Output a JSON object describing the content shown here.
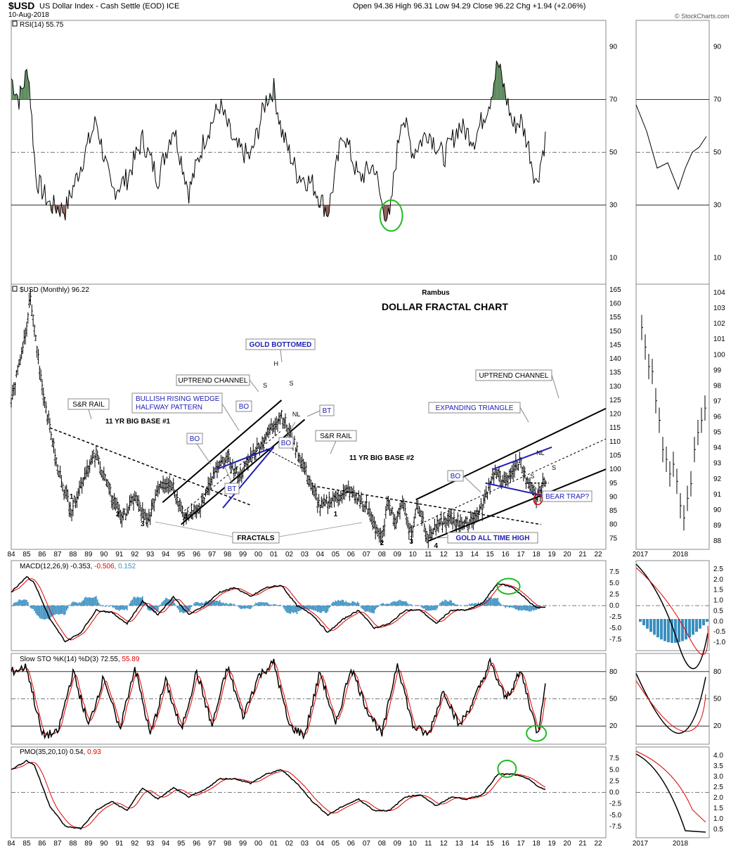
{
  "header": {
    "symbol": "$USD",
    "description": "US Dollar Index - Cash Settle (EOD) ICE",
    "date": "10-Aug-2018",
    "ohlc": "Open 94.36  High 96.31  Low 94.29  Close 96.22  Chg +1.94 (+2.06%)",
    "watermark": "© StockCharts.com"
  },
  "colors": {
    "price_bar": "#000000",
    "signal_line": "#e00000",
    "histogram": "#3a8fc0",
    "overbought_fill": "#5d8a5d",
    "oversold_fill": "#8c5a54",
    "annotation_box_text": "#1e1eb4",
    "highlight_circle": "#22bb22"
  },
  "x_axis": {
    "main_labels": [
      "84",
      "85",
      "86",
      "87",
      "88",
      "89",
      "90",
      "91",
      "92",
      "93",
      "94",
      "95",
      "96",
      "97",
      "98",
      "99",
      "00",
      "01",
      "02",
      "03",
      "04",
      "05",
      "06",
      "07",
      "08",
      "09",
      "10",
      "11",
      "12",
      "13",
      "14",
      "15",
      "16",
      "17",
      "18",
      "19",
      "20",
      "21",
      "22"
    ],
    "side_labels": [
      "2017",
      "2018"
    ]
  },
  "panels": {
    "rsi": {
      "title": "RSI(14) 55.75",
      "ticks": [
        "90",
        "70",
        "50",
        "30",
        "10"
      ],
      "side_ticks": [
        "90",
        "70",
        "50",
        "30",
        "10"
      ]
    },
    "price": {
      "title": "$USD (Monthly) 96.22",
      "ticks": [
        "165",
        "160",
        "155",
        "150",
        "145",
        "140",
        "135",
        "130",
        "125",
        "120",
        "115",
        "110",
        "105",
        "100",
        "95",
        "90",
        "85",
        "80",
        "75"
      ],
      "side_ticks": [
        "104",
        "103",
        "102",
        "101",
        "100",
        "99",
        "98",
        "97",
        "96",
        "95",
        "94",
        "93",
        "92",
        "91",
        "90",
        "89",
        "88"
      ],
      "author": "Rambus",
      "heading": "DOLLAR FRACTAL CHART"
    },
    "macd": {
      "title_main": "MACD(12,26,9) -0.353,",
      "title_signal": "-0.506,",
      "title_hist": "0.152",
      "ticks": [
        "7.5",
        "5.0",
        "2.5",
        "0.0",
        "-2.5",
        "-5.0",
        "-7.5"
      ],
      "side_ticks": [
        "2.5",
        "2.0",
        "1.5",
        "1.0",
        "0.5",
        "0.0",
        "-0.5",
        "-1.0"
      ]
    },
    "sto": {
      "title_main": "Slow STO %K(14) %D(3) 72.55,",
      "title_signal": "55.89",
      "ticks": [
        "80",
        "50",
        "20"
      ],
      "side_ticks": [
        "80",
        "50",
        "20"
      ]
    },
    "pmo": {
      "title_main": "PMO(35,20,10) 0.54,",
      "title_signal": "0.93",
      "ticks": [
        "7.5",
        "5.0",
        "2.5",
        "0.0",
        "-2.5",
        "-5.0",
        "-7.5"
      ],
      "side_ticks": [
        "4.0",
        "3.5",
        "3.0",
        "2.5",
        "2.0",
        "1.5",
        "1.0",
        "0.5"
      ]
    }
  },
  "annotations": {
    "sr_rail_1": "S&R RAIL",
    "base_1": "11 YR BIG BASE #1",
    "wedge_line1": "BULLISH RISING WEDGE",
    "wedge_line2": "HALFWAY PATTERN",
    "uptrend_channel_1": "UPTREND CHANNEL",
    "gold_bottomed": "GOLD BOTTOMED",
    "bo_a": "BO",
    "bo_b": "BO",
    "bo_c": "BO",
    "bo_d": "BO",
    "bt_a": "BT",
    "bt_b": "BT",
    "sr_rail_2": "S&R RAIL",
    "base_2": "11 YR BIG BASE #2",
    "uptrend_channel_2": "UPTREND CHANNEL",
    "expanding_triangle": "EXPANDING TRIANGLE",
    "bear_trap": "BEAR TRAP?",
    "gold_ath": "GOLD ALL TIME HIGH",
    "fractals": "FRACTALS",
    "hs_s1": "S",
    "hs_h1": "H",
    "hs_s2": "S",
    "hs_nl1": "NL",
    "hs_s3": "S",
    "hs_h2": "H",
    "hs_s4": "S",
    "hs_nl2": "NL",
    "n1a": "1",
    "n2a": "2",
    "n3a": "3",
    "n4a": "4",
    "n1b": "1",
    "n2b": "2",
    "n3b": "3",
    "n4b": "4"
  },
  "chart_data": {
    "type": "line",
    "title": "DOLLAR FRACTAL CHART",
    "x_range": [
      1984,
      2022.5
    ],
    "series": [
      {
        "name": "$USD (Monthly)",
        "x": [
          1984.0,
          1985.0,
          1985.2,
          1986.0,
          1987.0,
          1987.9,
          1988.9,
          1989.5,
          1990.5,
          1991.2,
          1992.0,
          1992.8,
          1993.6,
          1994.4,
          1995.3,
          1996.3,
          1997.3,
          1998.0,
          1998.7,
          1999.5,
          2000.5,
          2001.5,
          2002.0,
          2003.0,
          2004.0,
          2005.0,
          2005.9,
          2007.0,
          2008.0,
          2008.4,
          2008.9,
          2009.3,
          2009.9,
          2010.3,
          2011.0,
          2011.5,
          2012.5,
          2013.5,
          2014.5,
          2015.2,
          2016.0,
          2016.5,
          2017.0,
          2017.3,
          2018.0,
          2018.3,
          2018.6
        ],
        "y": [
          125,
          150,
          163,
          130,
          100,
          85,
          100,
          105,
          90,
          82,
          90,
          80,
          95,
          95,
          82,
          87,
          100,
          104,
          97,
          104,
          112,
          120,
          113,
          100,
          86,
          90,
          92,
          86,
          74,
          89,
          80,
          89,
          76,
          88,
          75,
          79,
          82,
          80,
          86,
          99,
          95,
          100,
          103,
          96,
          89,
          93,
          96.22
        ]
      },
      {
        "name": "RSI(14)",
        "x": [
          1984.0,
          1984.5,
          1985.1,
          1985.6,
          1986.5,
          1987.5,
          1988.5,
          1989.5,
          1990.5,
          1991.5,
          1992.5,
          1993.5,
          1994.5,
          1995.5,
          1996.5,
          1997.5,
          1998.5,
          1999.5,
          2000.5,
          2001.0,
          2001.5,
          2002.5,
          2003.5,
          2004.5,
          2005.5,
          2006.5,
          2007.5,
          2008.0,
          2008.5,
          2008.8,
          2009.3,
          2010.0,
          2011.0,
          2012.0,
          2013.0,
          2014.0,
          2015.0,
          2015.5,
          2016.5,
          2017.0,
          2017.5,
          2018.0,
          2018.6
        ],
        "y": [
          78,
          70,
          82,
          40,
          30,
          28,
          45,
          62,
          35,
          40,
          55,
          40,
          60,
          35,
          55,
          68,
          52,
          48,
          70,
          74,
          58,
          42,
          38,
          27,
          58,
          40,
          45,
          30,
          24,
          42,
          65,
          50,
          58,
          48,
          60,
          55,
          70,
          84,
          60,
          62,
          52,
          38,
          55.75
        ]
      },
      {
        "name": "MACD(12,26,9)",
        "x": [
          1984,
          1985,
          1985.5,
          1986.5,
          1987.5,
          1988.5,
          1989.5,
          1990.5,
          1991.5,
          1992.5,
          1993.5,
          1994.5,
          1995.5,
          1996.5,
          1997.5,
          1998.5,
          1999.5,
          2000.5,
          2001.5,
          2002.5,
          2003.5,
          2004.5,
          2005.5,
          2006.5,
          2007.5,
          2008.5,
          2009.5,
          2010.5,
          2011.5,
          2012.5,
          2013.5,
          2014.5,
          2015.5,
          2016.5,
          2017.5,
          2018.0,
          2018.6
        ],
        "y": [
          3,
          6.5,
          5,
          -3,
          -8,
          -6,
          -1,
          -1.5,
          -4,
          1,
          -2,
          2,
          -2,
          0,
          3,
          4,
          2,
          4,
          4.5,
          0,
          -2,
          -6,
          -3,
          -1,
          -5,
          -4,
          -1,
          -1,
          -4,
          -1,
          -1,
          0.5,
          5,
          4,
          1,
          -0.5,
          -0.353
        ]
      },
      {
        "name": "Slow STO %K(14)",
        "x": [
          1984,
          1985,
          1986,
          1987,
          1988,
          1989,
          1990,
          1991,
          1992,
          1993,
          1994,
          1995,
          1996,
          1997,
          1998,
          1999,
          2000,
          2001,
          2002,
          2003,
          2004,
          2005,
          2006,
          2007,
          2008,
          2009,
          2010,
          2011,
          2012,
          2013,
          2014,
          2015,
          2016,
          2017,
          2018.1,
          2018.6
        ],
        "y": [
          80,
          85,
          10,
          12,
          80,
          20,
          75,
          15,
          85,
          10,
          70,
          15,
          80,
          20,
          85,
          30,
          75,
          90,
          20,
          10,
          80,
          20,
          85,
          40,
          10,
          90,
          20,
          10,
          60,
          20,
          50,
          90,
          50,
          80,
          10,
          72.55
        ]
      },
      {
        "name": "PMO(35,20,10)",
        "x": [
          1984,
          1985,
          1985.5,
          1986.5,
          1987.5,
          1988.5,
          1989.5,
          1990.5,
          1991.5,
          1992.5,
          1993.5,
          1994.5,
          1995.5,
          1996.5,
          1997.5,
          1998.5,
          1999.5,
          2000.5,
          2001.5,
          2002.5,
          2003.5,
          2004.5,
          2005.5,
          2006.5,
          2007.5,
          2008.5,
          2009.5,
          2010.5,
          2011.5,
          2012.5,
          2013.5,
          2014.5,
          2015.5,
          2016.5,
          2017.5,
          2018.0,
          2018.6
        ],
        "y": [
          5,
          7,
          6,
          -3,
          -7.5,
          -8,
          -4,
          -2,
          -4,
          1,
          -1.5,
          1,
          -1,
          0.5,
          3,
          3,
          2,
          4,
          5,
          2,
          -2,
          -5,
          -3,
          -1.5,
          -4,
          -4,
          -1,
          -0.5,
          -3,
          -1,
          -1.5,
          -0.5,
          4,
          4,
          3,
          1.5,
          0.54
        ]
      }
    ]
  }
}
